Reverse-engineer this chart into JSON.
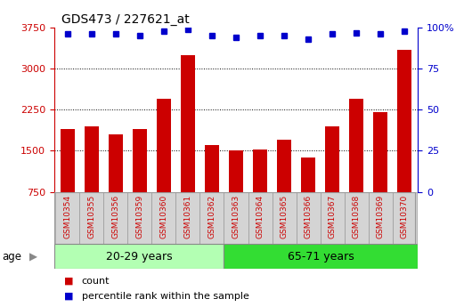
{
  "title": "GDS473 / 227621_at",
  "samples": [
    "GSM10354",
    "GSM10355",
    "GSM10356",
    "GSM10359",
    "GSM10360",
    "GSM10361",
    "GSM10362",
    "GSM10363",
    "GSM10364",
    "GSM10365",
    "GSM10366",
    "GSM10367",
    "GSM10368",
    "GSM10369",
    "GSM10370"
  ],
  "counts": [
    1900,
    1950,
    1800,
    1900,
    2450,
    3250,
    1600,
    1510,
    1530,
    1700,
    1380,
    1950,
    2450,
    2200,
    3350
  ],
  "percentile_ranks": [
    96,
    96,
    96,
    95,
    98,
    99,
    95,
    94,
    95,
    95,
    93,
    96,
    97,
    96,
    98
  ],
  "group1_label": "20-29 years",
  "group2_label": "65-71 years",
  "group1_count": 7,
  "group2_count": 8,
  "ylim_left": [
    750,
    3750
  ],
  "ylim_right": [
    0,
    100
  ],
  "yticks_left": [
    750,
    1500,
    2250,
    3000,
    3750
  ],
  "yticks_right": [
    0,
    25,
    50,
    75,
    100
  ],
  "bar_color": "#cc0000",
  "dot_color": "#0000cc",
  "group1_bg": "#b3ffb3",
  "group2_bg": "#33dd33",
  "xtick_bg": "#d4d4d4",
  "xtick_edge": "#999999",
  "tick_label_color_left": "#cc0000",
  "tick_label_color_right": "#0000cc",
  "legend_count_label": "count",
  "legend_pct_label": "percentile rank within the sample",
  "age_label": "age"
}
